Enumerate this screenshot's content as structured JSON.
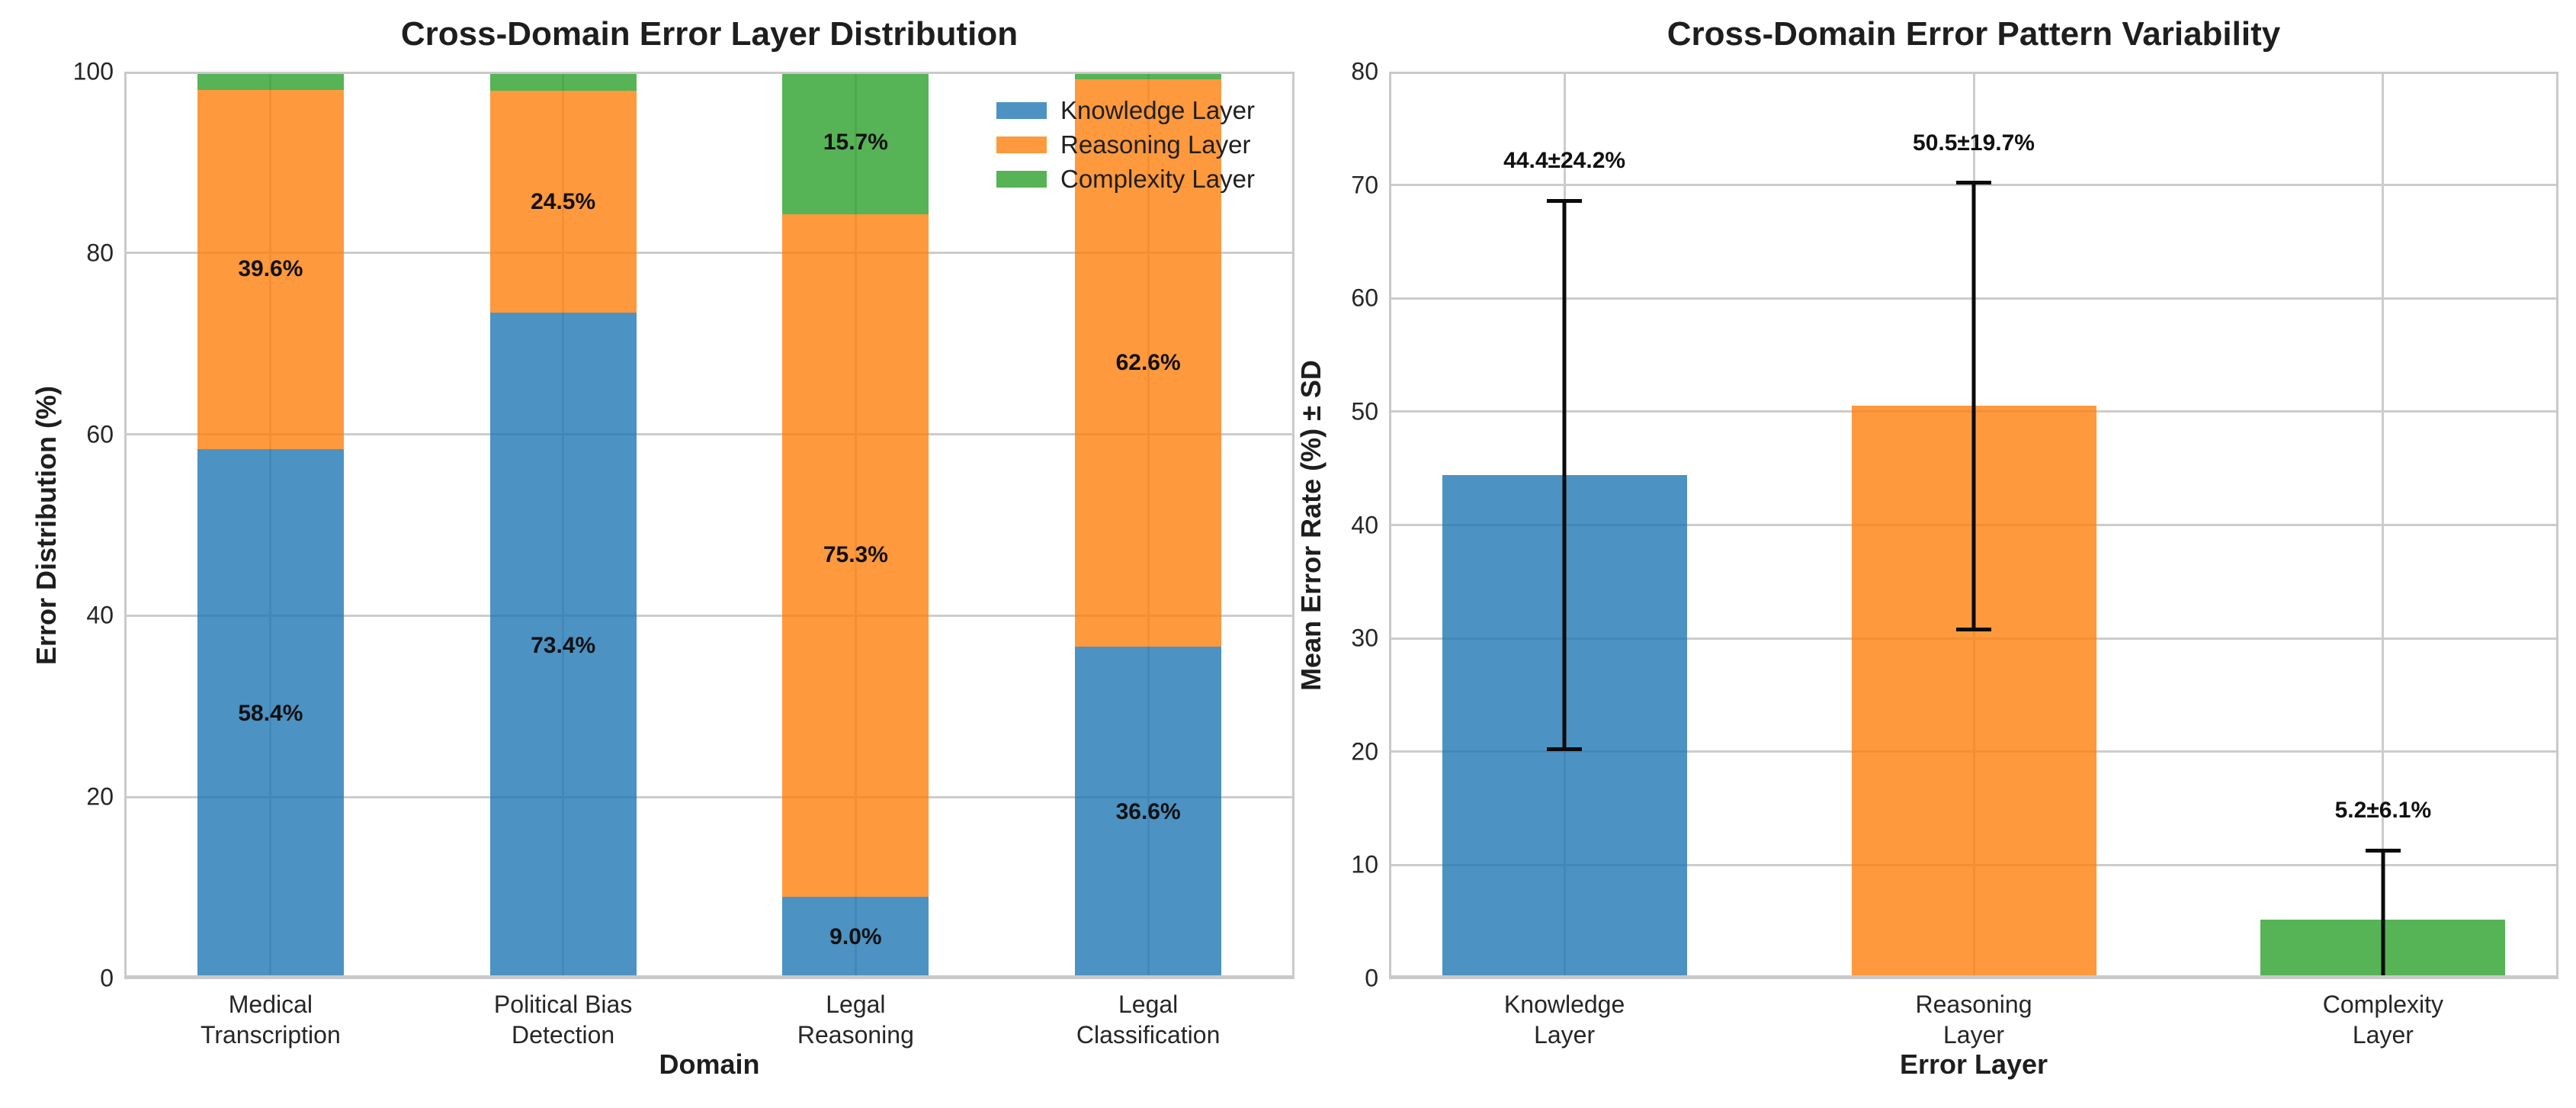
{
  "figure": {
    "background": "#ffffff",
    "grid_color": "#cccccc",
    "spine_color": "#c9c9c9",
    "text_color": "#1e1e1e",
    "errorbar_color": "#0b0b0b"
  },
  "chart_data": [
    {
      "type": "bar",
      "subtype": "stacked",
      "title": "Cross-Domain Error Layer Distribution",
      "xlabel": "Domain",
      "ylabel": "Error Distribution (%)",
      "ylim": [
        0,
        100
      ],
      "yticks": [
        0,
        20,
        40,
        60,
        80,
        100
      ],
      "grid": true,
      "legend_position": "upper right",
      "categories": [
        "Medical\nTranscription",
        "Political Bias\nDetection",
        "Legal\nReasoning",
        "Legal\nClassification"
      ],
      "series": [
        {
          "name": "Knowledge Layer",
          "color": "#1f77b4",
          "values": [
            58.4,
            73.4,
            9.0,
            36.6
          ]
        },
        {
          "name": "Reasoning Layer",
          "color": "#ff7f0e",
          "values": [
            39.6,
            24.5,
            75.3,
            62.6
          ]
        },
        {
          "name": "Complexity Layer",
          "color": "#2ca02c",
          "values": [
            2.0,
            2.1,
            15.7,
            0.8
          ]
        }
      ],
      "segment_labels": [
        [
          "58.4%",
          "39.6%",
          ""
        ],
        [
          "73.4%",
          "24.5%",
          ""
        ],
        [
          "9.0%",
          "75.3%",
          "15.7%"
        ],
        [
          "36.6%",
          "62.6%",
          ""
        ]
      ]
    },
    {
      "type": "bar",
      "subtype": "error_bars",
      "title": "Cross-Domain Error Pattern Variability",
      "xlabel": "Error Layer",
      "ylabel": "Mean Error Rate (%) ± SD",
      "ylim": [
        0,
        80
      ],
      "yticks": [
        0,
        10,
        20,
        30,
        40,
        50,
        60,
        70,
        80
      ],
      "grid": true,
      "categories": [
        "Knowledge\nLayer",
        "Reasoning\nLayer",
        "Complexity\nLayer"
      ],
      "values": [
        44.4,
        50.5,
        5.2
      ],
      "errors": [
        24.2,
        19.7,
        6.1
      ],
      "bar_colors": [
        "#1f77b4",
        "#ff7f0e",
        "#2ca02c"
      ],
      "annotations": [
        "44.4±24.2%",
        "50.5±19.7%",
        "5.2±6.1%"
      ]
    }
  ]
}
